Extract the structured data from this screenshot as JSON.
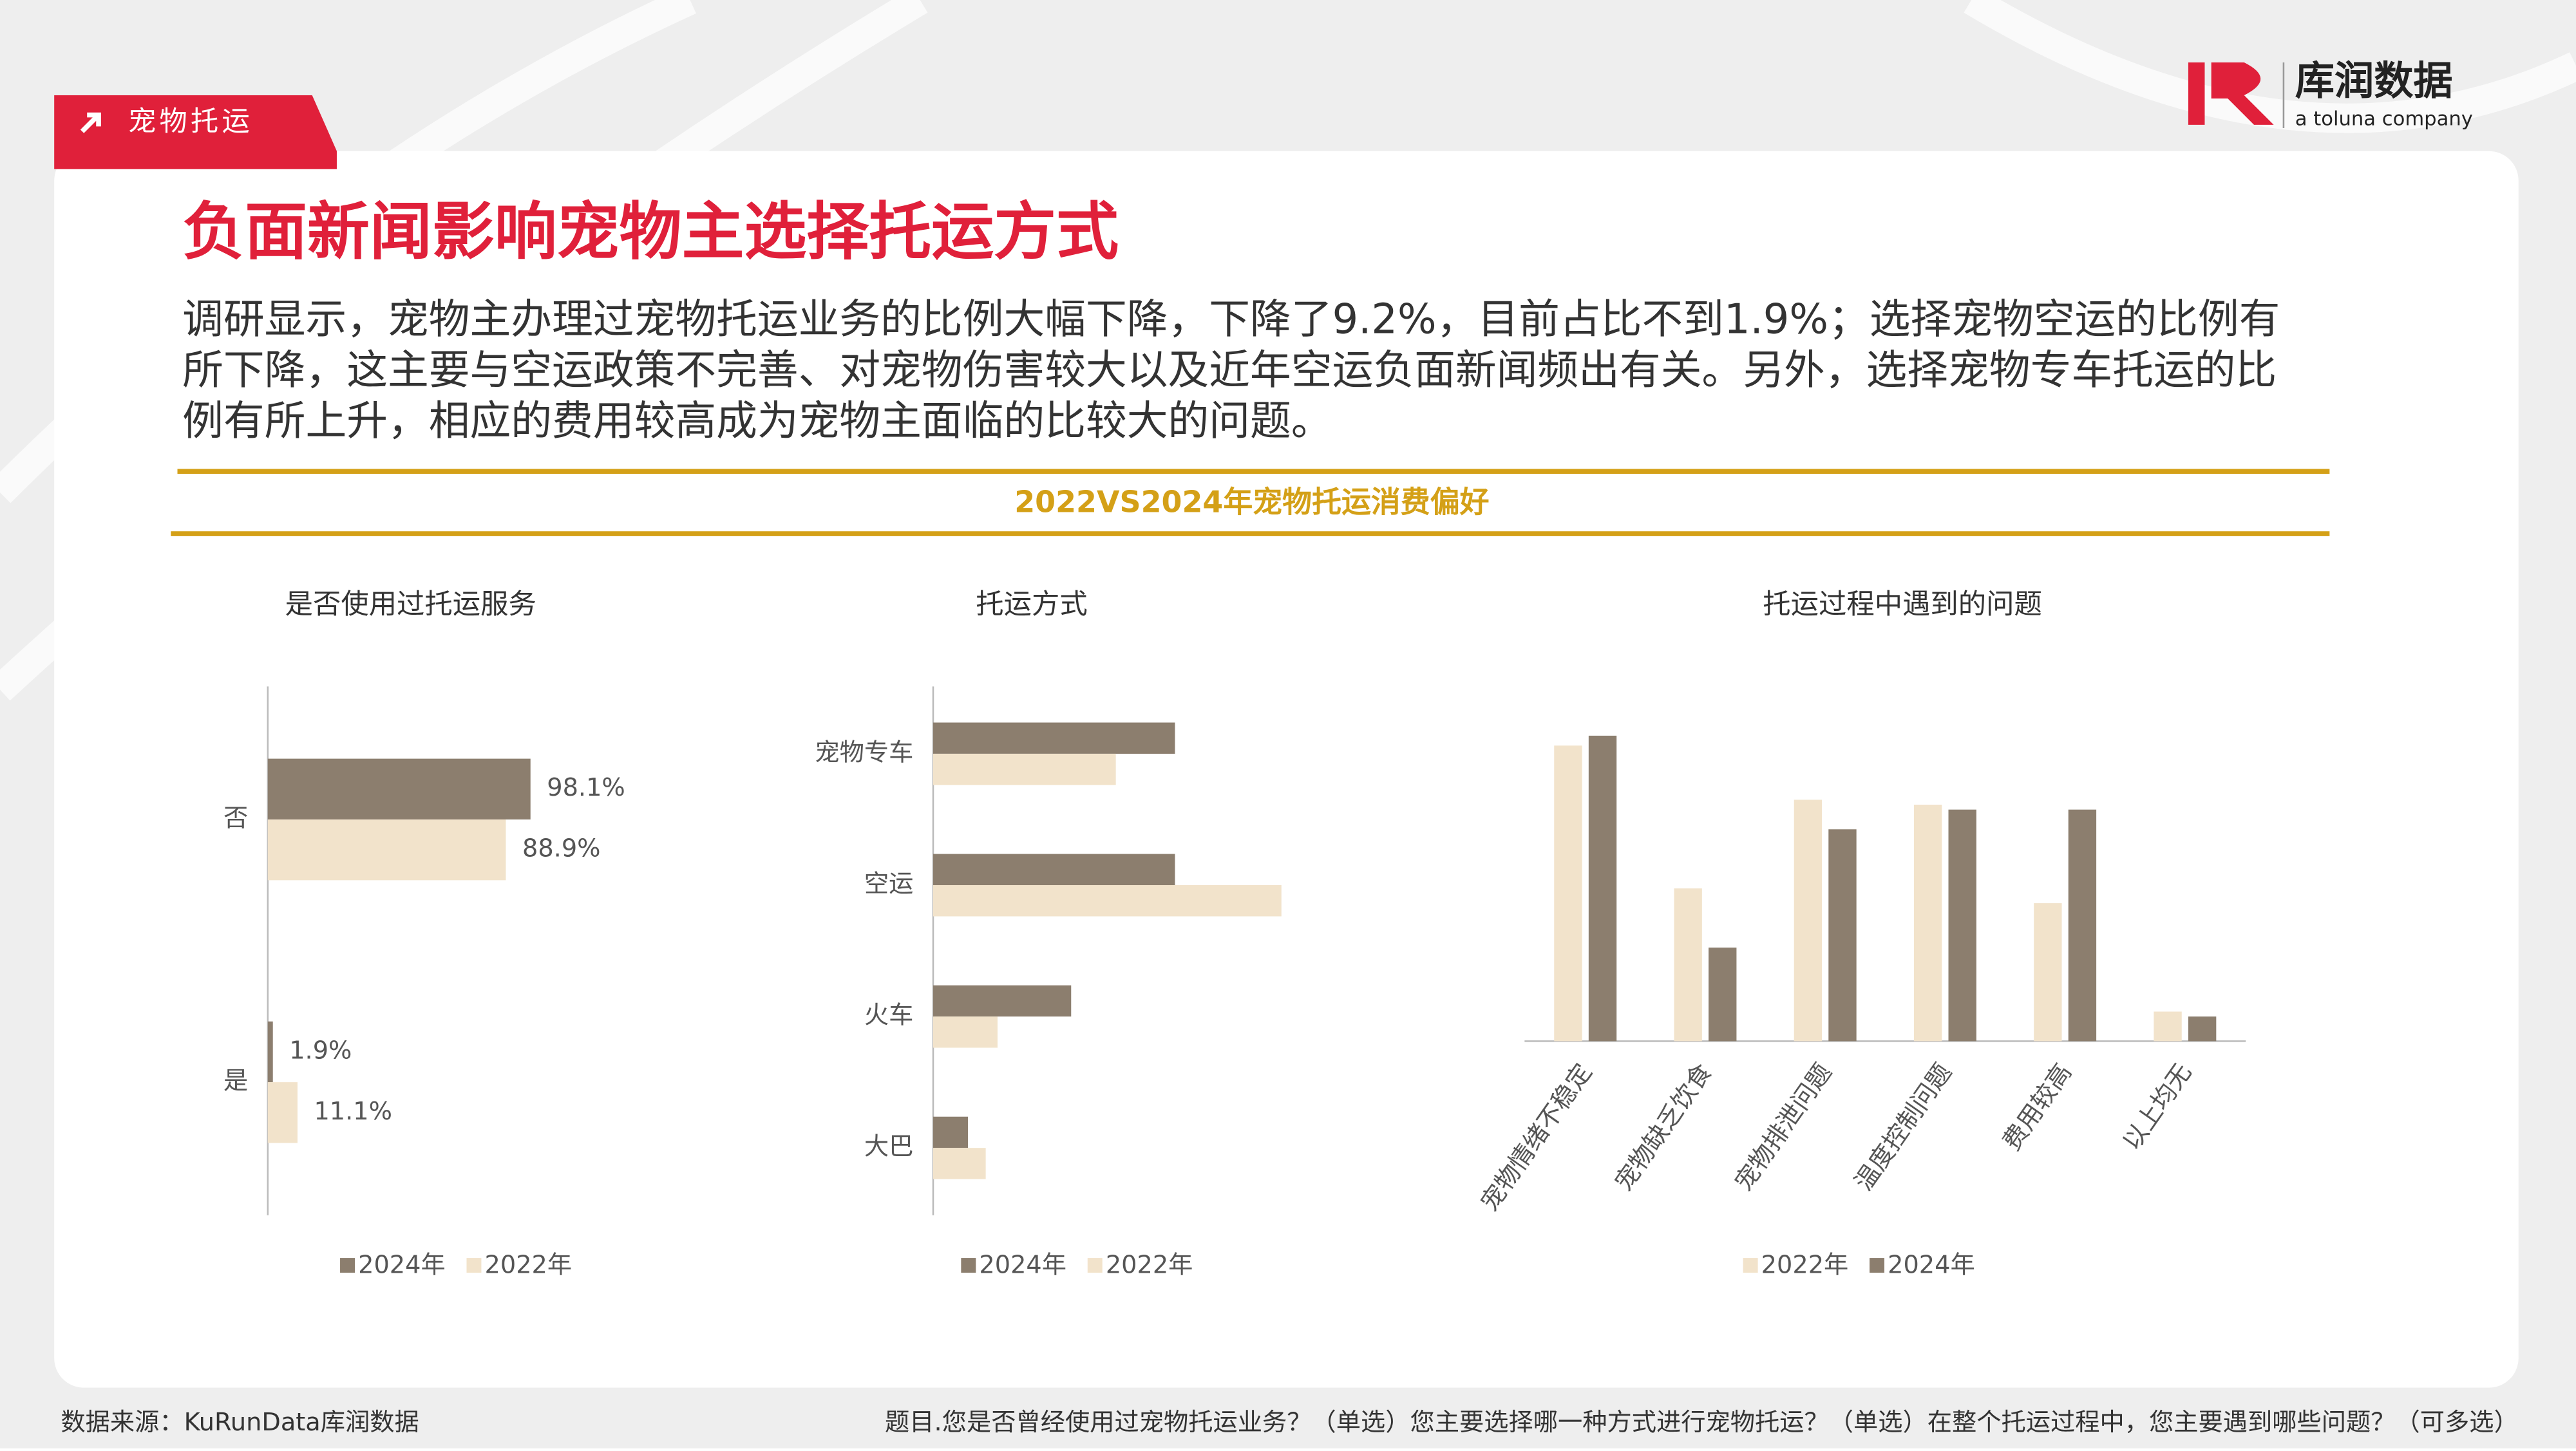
{
  "header": {
    "tag": "宠物托运",
    "logo": "库润数据",
    "logo_sub": "a toluna company"
  },
  "title": "负面新闻影响宠物主选择托运方式",
  "body": {
    "lines": [
      "调研显示，宠物主办理过宠物托运业务的比例大幅下降，下降了9.2%，目前占比不到1.9%；选择宠物空运的比例有",
      "所下降，这主要与空运政策不完善、对宠物伤害较大以及近年空运负面新闻频出有关。另外，选择宠物专车托运的比",
      "例有所上升，相应的费用较高成为宠物主面临的比较大的问题。"
    ]
  },
  "banner": "2022VS2024年宠物托运消费偏好",
  "chart_data": [
    {
      "type": "bar",
      "orientation": "horizontal",
      "title": "是否使用过托运服务",
      "categories": [
        "否",
        "是"
      ],
      "series": [
        {
          "name": "2024年",
          "color": "#8c7e6e",
          "values": [
            98.1,
            1.9
          ],
          "value_labels": [
            "98.1%",
            "1.9%"
          ]
        },
        {
          "name": "2022年",
          "color": "#f2e3cb",
          "values": [
            88.9,
            11.1
          ],
          "value_labels": [
            "88.9%",
            "11.1%"
          ]
        }
      ]
    },
    {
      "type": "bar",
      "orientation": "horizontal",
      "title": "托运方式",
      "categories": [
        "宠物专车",
        "空运",
        "火车",
        "大巴"
      ],
      "series": [
        {
          "name": "2024年",
          "color": "#8c7e6e",
          "values": [
            36.8,
            36.8,
            21,
            5.3
          ]
        },
        {
          "name": "2022年",
          "color": "#f2e3cb",
          "values": [
            27.8,
            53,
            9.8,
            8
          ]
        }
      ]
    },
    {
      "type": "bar",
      "orientation": "vertical",
      "title": "托运过程中遇到的问题",
      "categories": [
        "宠物情绪不稳定",
        "宠物缺乏饮食",
        "宠物排泄问题",
        "温度控制问题",
        "费用较高",
        "以上均无"
      ],
      "series": [
        {
          "name": "2022年",
          "color": "#f2e3cb",
          "values": [
            60,
            31,
            49,
            48,
            28,
            6
          ]
        },
        {
          "name": "2024年",
          "color": "#8c7e6e",
          "values": [
            62,
            19,
            43,
            47,
            47,
            5
          ]
        }
      ]
    }
  ],
  "footer": {
    "source": "数据来源：KuRunData库润数据",
    "question": "题目.您是否曾经使用过宠物托运业务？（单选）您主要选择哪一种方式进行宠物托运？（单选）在整个托运过程中，您主要遇到哪些问题？（可多选）"
  }
}
